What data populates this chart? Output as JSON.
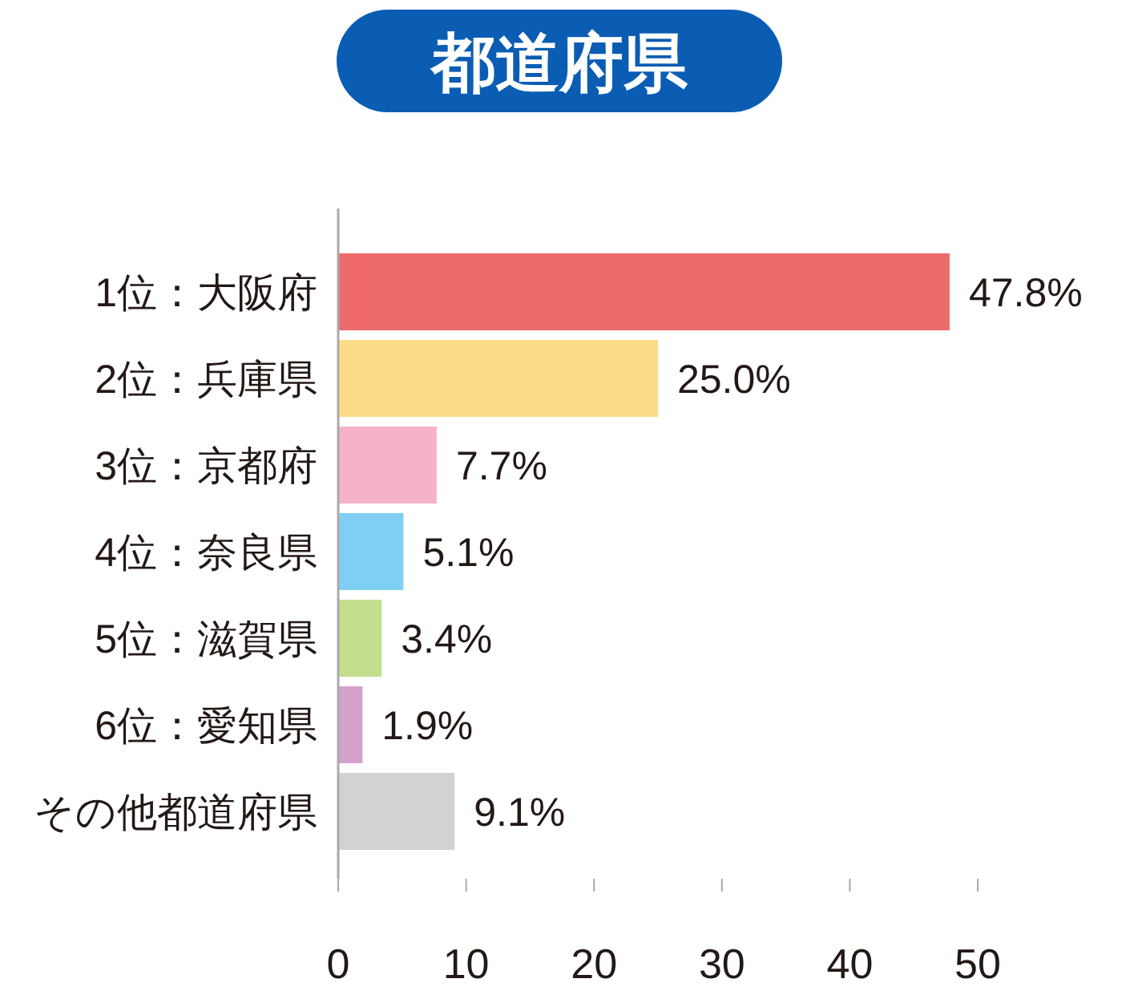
{
  "chart_data": {
    "type": "bar",
    "orientation": "horizontal",
    "title": "都道府県",
    "categories": [
      "1位：大阪府",
      "2位：兵庫県",
      "3位：京都府",
      "4位：奈良県",
      "5位：滋賀県",
      "6位：愛知県",
      "その他都道府県"
    ],
    "values": [
      47.8,
      25.0,
      7.7,
      5.1,
      3.4,
      1.9,
      9.1
    ],
    "value_labels": [
      "47.8%",
      "25.0%",
      "7.7%",
      "5.1%",
      "3.4%",
      "1.9%",
      "9.1%"
    ],
    "colors": [
      "#ee6a6b",
      "#fddc89",
      "#f6b3c8",
      "#7ecff3",
      "#c3de8d",
      "#d5a2cb",
      "#d2d2d2"
    ],
    "xlim": [
      0,
      50
    ],
    "xticks": [
      0,
      10,
      20,
      30,
      40,
      50
    ],
    "grid": false
  }
}
